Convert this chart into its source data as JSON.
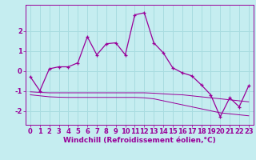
{
  "xlabel": "Windchill (Refroidissement éolien,°C)",
  "background_color": "#c5edf0",
  "grid_color": "#a8dce0",
  "line_color": "#990099",
  "hours": [
    0,
    1,
    2,
    3,
    4,
    5,
    6,
    7,
    8,
    9,
    10,
    11,
    12,
    13,
    14,
    15,
    16,
    17,
    18,
    19,
    20,
    21,
    22,
    23
  ],
  "main_line": [
    -0.3,
    -1.0,
    0.1,
    0.2,
    0.2,
    0.4,
    1.7,
    0.8,
    1.35,
    1.4,
    0.8,
    2.8,
    2.9,
    1.4,
    0.9,
    0.15,
    -0.1,
    -0.25,
    -0.7,
    -1.2,
    -2.3,
    -1.35,
    -1.8,
    -0.75
  ],
  "flat_line1": [
    -1.05,
    -1.08,
    -1.1,
    -1.1,
    -1.1,
    -1.1,
    -1.1,
    -1.1,
    -1.1,
    -1.1,
    -1.1,
    -1.1,
    -1.1,
    -1.12,
    -1.15,
    -1.18,
    -1.2,
    -1.25,
    -1.3,
    -1.35,
    -1.4,
    -1.45,
    -1.5,
    -1.55
  ],
  "flat_line2": [
    -1.2,
    -1.25,
    -1.3,
    -1.32,
    -1.33,
    -1.33,
    -1.33,
    -1.33,
    -1.33,
    -1.33,
    -1.33,
    -1.33,
    -1.35,
    -1.4,
    -1.5,
    -1.6,
    -1.7,
    -1.8,
    -1.9,
    -2.0,
    -2.1,
    -2.15,
    -2.2,
    -2.25
  ],
  "ylim": [
    -2.7,
    3.3
  ],
  "yticks": [
    -2,
    -1,
    0,
    1,
    2
  ],
  "tick_fontsize": 6,
  "label_fontsize": 6.5
}
